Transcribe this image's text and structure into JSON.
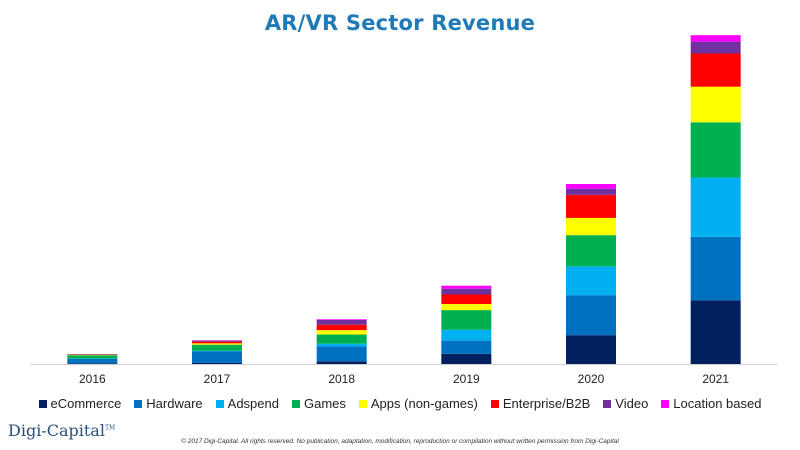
{
  "chart_data": {
    "type": "bar",
    "stacked": true,
    "title": "AR/VR Sector Revenue",
    "xlabel": "",
    "ylabel": "",
    "categories": [
      "2016",
      "2017",
      "2018",
      "2019",
      "2020",
      "2021"
    ],
    "series": [
      {
        "name": "eCommerce",
        "color": "#002060",
        "values": [
          0.2,
          0.3,
          0.8,
          3.0,
          8.5,
          18.8
        ]
      },
      {
        "name": "Hardware",
        "color": "#0070C0",
        "values": [
          1.3,
          3.4,
          4.4,
          3.9,
          11.8,
          18.7
        ]
      },
      {
        "name": "Adspend",
        "color": "#00B0F0",
        "values": [
          0.1,
          0.2,
          0.8,
          3.2,
          8.5,
          17.5
        ]
      },
      {
        "name": "Games",
        "color": "#00B050",
        "values": [
          1.0,
          1.8,
          2.7,
          5.8,
          9.2,
          16.3
        ]
      },
      {
        "name": "Apps (non-games)",
        "color": "#FFFF00",
        "values": [
          0.1,
          0.4,
          1.3,
          1.8,
          5.1,
          10.5
        ]
      },
      {
        "name": "Enterprise/B2B",
        "color": "#FF0000",
        "values": [
          0.1,
          0.5,
          1.6,
          2.8,
          6.8,
          9.8
        ]
      },
      {
        "name": "Video",
        "color": "#7030A0",
        "values": [
          0.1,
          0.3,
          1.4,
          1.7,
          1.8,
          3.5
        ]
      },
      {
        "name": "Location based",
        "color": "#FF00FF",
        "values": [
          0.0,
          0.1,
          0.2,
          0.9,
          1.4,
          1.9
        ]
      }
    ],
    "ylim": [
      0,
      100
    ],
    "grid": false,
    "legend_position": "bottom"
  },
  "branding": {
    "logo_text": "Digi-Capital",
    "logo_tm": "TM",
    "copyright": "© 2017 Digi-Capital. All rights reserved. No publication, adaptation, modification, reproduction or compilation without written permission from Digi-Capital"
  }
}
